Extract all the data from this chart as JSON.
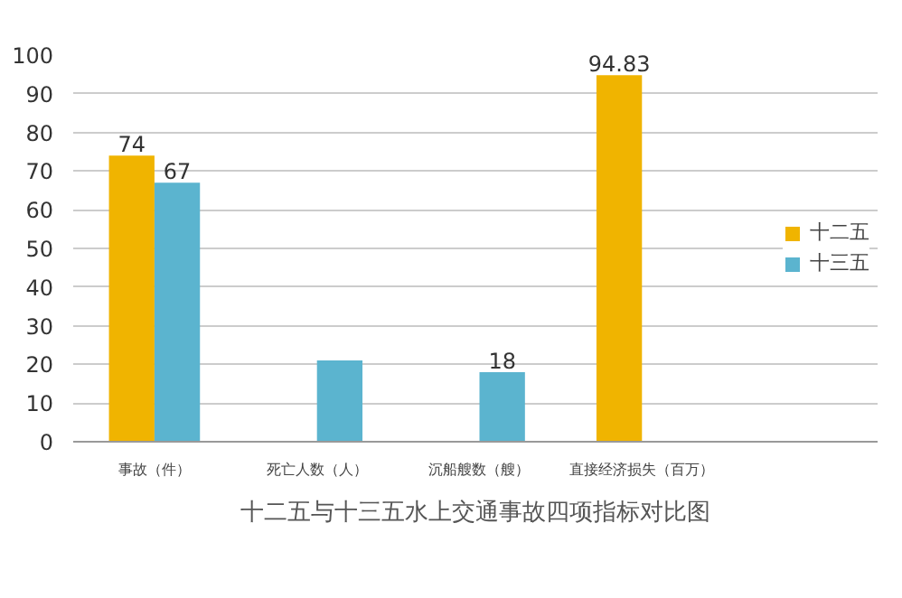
{
  "chart_data": {
    "type": "bar",
    "title": "十二五与十三五水上交通事故四项指标对比图",
    "categories": [
      "事故（件）",
      "死亡人数（人）",
      "沉船艘数（艘）",
      "直接经济损失（百万）"
    ],
    "series": [
      {
        "name": "十二五",
        "color": "#f0b400",
        "values": [
          74,
          null,
          null,
          94.83
        ],
        "value_labels": [
          "74",
          null,
          null,
          "94.83"
        ]
      },
      {
        "name": "十三五",
        "color": "#5bb4cf",
        "values": [
          67,
          21,
          18,
          null
        ],
        "value_labels": [
          "67",
          null,
          "18",
          null
        ]
      }
    ],
    "ylim": [
      0,
      100
    ],
    "yticks": [
      0,
      10,
      20,
      30,
      40,
      50,
      60,
      70,
      80,
      90,
      100
    ],
    "grid": "y",
    "legend": "right"
  }
}
